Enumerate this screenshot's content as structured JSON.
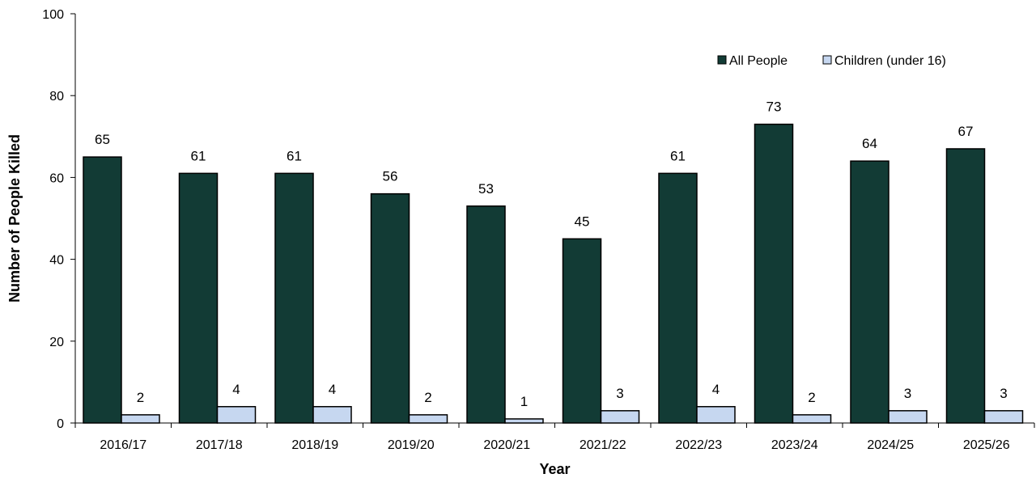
{
  "chart_data": {
    "type": "bar",
    "categories": [
      "2016/17",
      "2017/18",
      "2018/19",
      "2019/20",
      "2020/21",
      "2021/22",
      "2022/23",
      "2023/24",
      "2024/25",
      "2025/26"
    ],
    "series": [
      {
        "name": "All People",
        "values": [
          65,
          61,
          61,
          56,
          53,
          45,
          61,
          73,
          64,
          67
        ],
        "color": "#123b35"
      },
      {
        "name": "Children (under 16)",
        "values": [
          2,
          4,
          4,
          2,
          1,
          3,
          4,
          2,
          3,
          3
        ],
        "color": "#c6d7f0"
      }
    ],
    "xlabel": "Year",
    "ylabel": "Number of People Killed",
    "ylim": [
      0,
      100
    ],
    "yticks": [
      0,
      20,
      40,
      60,
      80,
      100
    ],
    "grid": false,
    "legend_position": "top-right",
    "data_labels": true
  }
}
